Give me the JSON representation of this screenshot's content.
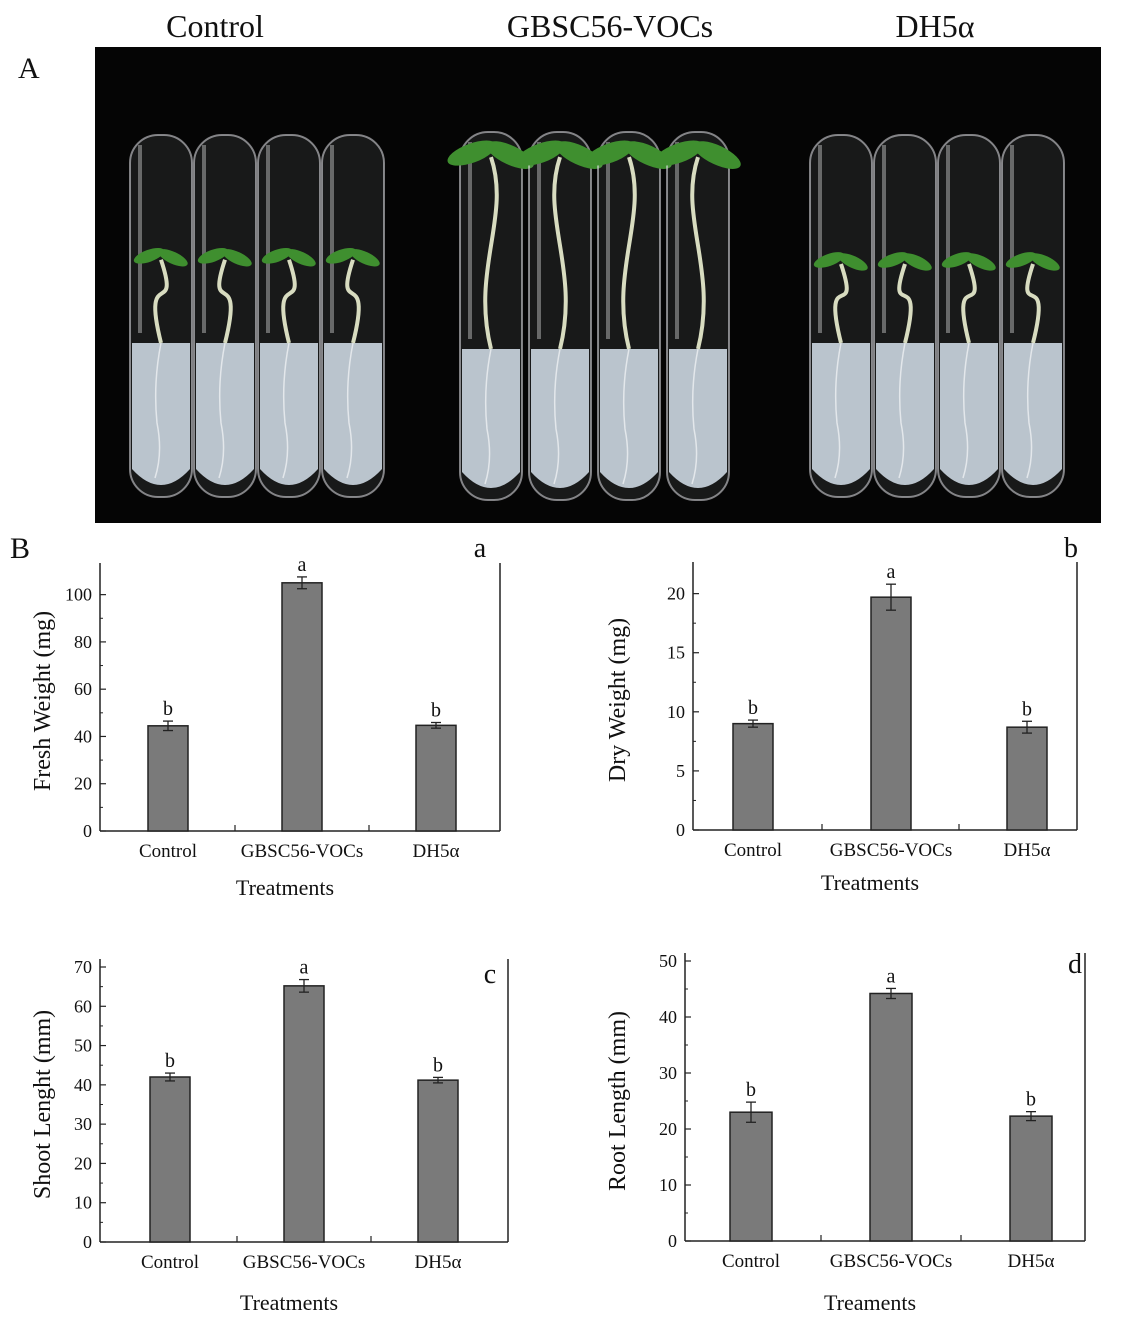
{
  "figure": {
    "panel_a_label": "A",
    "panel_b_label": "B",
    "photo_headers": [
      "Control",
      "GBSC56-VOCs",
      "DH5α"
    ]
  },
  "photo": {
    "description": "Seedlings grown in glass tubes on agar medium",
    "groups": [
      {
        "name": "Control",
        "tubes": 4,
        "shoot_height": 0.4,
        "leaf_size": 1.0
      },
      {
        "name": "GBSC56-VOCs",
        "tubes": 4,
        "shoot_height": 0.7,
        "leaf_size": 1.6
      },
      {
        "name": "DH5α",
        "tubes": 4,
        "shoot_height": 0.38,
        "leaf_size": 1.0
      }
    ],
    "colors": {
      "background": "#050505",
      "agar": "#c9d3dc",
      "stem": "#d8dcc0",
      "leaf": "#3f8f2f"
    }
  },
  "chart_data": [
    {
      "type": "bar",
      "panel": "a",
      "categories": [
        "Control",
        "GBSC56-VOCs",
        "DH5α"
      ],
      "values": [
        44.5,
        105,
        44.7
      ],
      "errors": [
        2.0,
        2.5,
        1.2
      ],
      "letters": [
        "b",
        "a",
        "b"
      ],
      "xlabel": "Treatments",
      "ylabel": "Fresh Weight (mg)",
      "ylim": [
        0,
        110
      ],
      "yticks": [
        0,
        20,
        40,
        60,
        80,
        100
      ]
    },
    {
      "type": "bar",
      "panel": "b",
      "categories": [
        "Control",
        "GBSC56-VOCs",
        "DH5α"
      ],
      "values": [
        9.0,
        19.7,
        8.7
      ],
      "errors": [
        0.3,
        1.1,
        0.5
      ],
      "letters": [
        "b",
        "a",
        "b"
      ],
      "xlabel": "Treatments",
      "ylabel": "Dry Weight (mg)",
      "ylim": [
        0,
        22
      ],
      "yticks": [
        0,
        5,
        10,
        15,
        20
      ]
    },
    {
      "type": "bar",
      "panel": "c",
      "categories": [
        "Control",
        "GBSC56-VOCs",
        "DH5α"
      ],
      "values": [
        42,
        65.2,
        41.2
      ],
      "errors": [
        1.0,
        1.6,
        0.7
      ],
      "letters": [
        "b",
        "a",
        "b"
      ],
      "xlabel": "Treatments",
      "ylabel": "Shoot Lenght (mm)",
      "ylim": [
        0,
        70
      ],
      "yticks": [
        0,
        10,
        20,
        30,
        40,
        50,
        60,
        70
      ]
    },
    {
      "type": "bar",
      "panel": "d",
      "categories": [
        "Control",
        "GBSC56-VOCs",
        "DH5α"
      ],
      "values": [
        23,
        44.2,
        22.3
      ],
      "errors": [
        1.8,
        0.9,
        0.8
      ],
      "letters": [
        "b",
        "a",
        "b"
      ],
      "xlabel": "Treaments",
      "ylabel": "Root Length (mm)",
      "ylim": [
        0,
        50
      ],
      "yticks": [
        0,
        10,
        20,
        30,
        40,
        50
      ]
    }
  ],
  "colors": {
    "bar": "#7a7a7a",
    "bar_stroke": "#222222",
    "axis": "#222222"
  }
}
